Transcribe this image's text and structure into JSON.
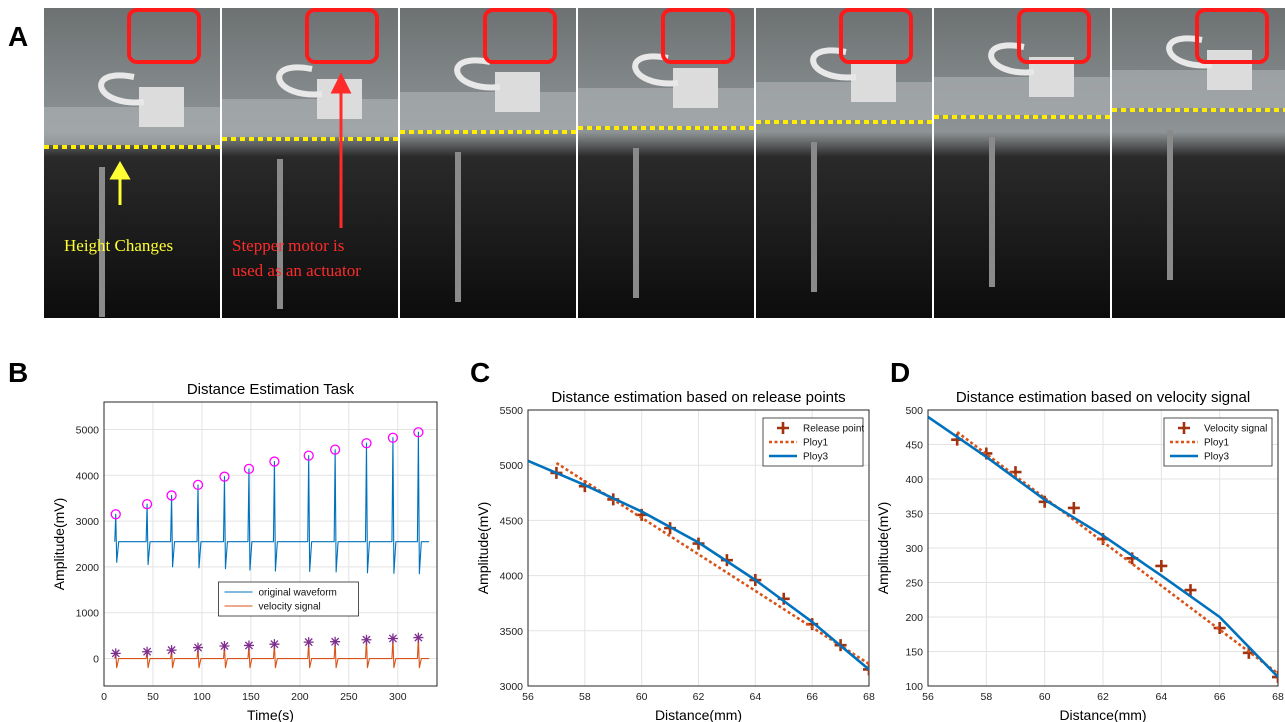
{
  "figure_a": {
    "panel": "A",
    "annotations": [
      {
        "lines": [
          "Height Changes"
        ],
        "color": "#ffff33"
      },
      {
        "lines": [
          "Stepper motor is",
          "used as an actuator"
        ],
        "color": "#ff2a2a"
      }
    ]
  },
  "chart_data": [
    {
      "type": "line",
      "panel": "B",
      "title": "Distance Estimation Task",
      "xlabel": "Time(s)",
      "ylabel": "Amplitude(mV)",
      "xlim": [
        0,
        340
      ],
      "xticks": [
        0,
        50,
        100,
        150,
        200,
        250,
        300
      ],
      "ylim": [
        -600,
        5600
      ],
      "yticks": [
        0,
        1000,
        2000,
        3000,
        4000,
        5000
      ],
      "grid": true,
      "legend": "lower center",
      "series": [
        {
          "name": "original waveform",
          "color": "#0072bd",
          "linestyle": "solid",
          "marker": "none",
          "x": [
            11,
            12,
            13,
            15,
            43,
            44,
            45,
            47,
            68,
            69,
            70,
            72,
            95,
            96,
            97,
            99,
            122,
            123,
            124,
            126,
            147,
            148,
            149,
            151,
            173,
            174,
            175,
            177,
            208,
            209,
            210,
            212,
            235,
            236,
            237,
            239,
            267,
            268,
            269,
            271,
            294,
            295,
            296,
            298,
            320,
            321,
            322,
            324,
            332
          ],
          "values": [
            2550,
            3150,
            2100,
            2550,
            2550,
            3370,
            2050,
            2550,
            2550,
            3560,
            2000,
            2550,
            2550,
            3790,
            1980,
            2550,
            2550,
            3970,
            1960,
            2550,
            2550,
            4140,
            1930,
            2550,
            2550,
            4300,
            1910,
            2550,
            2550,
            4430,
            1900,
            2550,
            2550,
            4560,
            1890,
            2550,
            2550,
            4700,
            1870,
            2550,
            2550,
            4820,
            1860,
            2550,
            2550,
            4940,
            1850,
            2550,
            2550
          ]
        },
        {
          "name": "velocity signal",
          "color": "#d95319",
          "linestyle": "solid",
          "marker": "none",
          "x": [
            11,
            12,
            13,
            15,
            43,
            44,
            45,
            47,
            68,
            69,
            70,
            72,
            95,
            96,
            97,
            99,
            122,
            123,
            124,
            126,
            147,
            148,
            149,
            151,
            173,
            174,
            175,
            177,
            208,
            209,
            210,
            212,
            235,
            236,
            237,
            239,
            267,
            268,
            269,
            271,
            294,
            295,
            296,
            298,
            320,
            321,
            322,
            324,
            332
          ],
          "values": [
            0,
            113,
            -200,
            0,
            0,
            148,
            -200,
            0,
            0,
            184,
            -200,
            0,
            0,
            239,
            -200,
            0,
            0,
            274,
            -200,
            0,
            0,
            285,
            -200,
            0,
            0,
            313,
            -200,
            0,
            0,
            358,
            -200,
            0,
            0,
            367,
            -200,
            0,
            0,
            410,
            -200,
            0,
            0,
            437,
            -200,
            0,
            0,
            457,
            -200,
            0,
            0
          ]
        }
      ],
      "markers": [
        {
          "color": "#ff00ff",
          "marker": "circle",
          "x": [
            12,
            44,
            69,
            96,
            123,
            148,
            174,
            209,
            236,
            268,
            295,
            321
          ],
          "values": [
            3150,
            3370,
            3560,
            3790,
            3970,
            4140,
            4300,
            4430,
            4560,
            4700,
            4820,
            4940
          ]
        },
        {
          "color": "#7e2f8e",
          "marker": "star",
          "x": [
            12,
            44,
            69,
            96,
            123,
            148,
            174,
            209,
            236,
            268,
            295,
            321
          ],
          "values": [
            113,
            148,
            184,
            239,
            274,
            285,
            313,
            358,
            367,
            410,
            437,
            457
          ]
        }
      ]
    },
    {
      "type": "line",
      "panel": "C",
      "title": "Distance estimation based on release points",
      "xlabel": "Distance(mm)",
      "ylabel": "Amplitude(mV)",
      "xlim": [
        56,
        68
      ],
      "xticks": [
        56,
        58,
        60,
        62,
        64,
        66,
        68
      ],
      "ylim": [
        3000,
        5500
      ],
      "yticks": [
        3000,
        3500,
        4000,
        4500,
        5000,
        5500
      ],
      "grid": true,
      "legend": "upper right",
      "series": [
        {
          "name": "Release point",
          "color": "#a2330f",
          "linestyle": "none",
          "marker": "plus",
          "x": [
            57,
            58,
            59,
            60,
            61,
            62,
            63,
            64,
            65,
            66,
            67,
            68
          ],
          "values": [
            4930,
            4810,
            4690,
            4550,
            4430,
            4290,
            4140,
            3960,
            3790,
            3560,
            3370,
            3150
          ]
        },
        {
          "name": "Ploy1",
          "color": "#d95319",
          "linestyle": "dotted",
          "marker": "none",
          "x": [
            57,
            68
          ],
          "values": [
            5020,
            3200
          ]
        },
        {
          "name": "Ploy3",
          "color": "#0072bd",
          "linestyle": "solid",
          "marker": "none",
          "x": [
            56,
            58,
            60,
            62,
            64,
            66,
            68
          ],
          "values": [
            5040,
            4820,
            4580,
            4300,
            3960,
            3580,
            3150
          ]
        }
      ]
    },
    {
      "type": "line",
      "panel": "D",
      "title": "Distance estimation based on velocity signal",
      "xlabel": "Distance(mm)",
      "ylabel": "Amplitude(mV)",
      "xlim": [
        56,
        68
      ],
      "xticks": [
        56,
        58,
        60,
        62,
        64,
        66,
        68
      ],
      "ylim": [
        100,
        500
      ],
      "yticks": [
        100,
        150,
        200,
        250,
        300,
        350,
        400,
        450,
        500
      ],
      "grid": true,
      "legend": "upper right",
      "series": [
        {
          "name": "Velocity signal",
          "color": "#a2330f",
          "linestyle": "none",
          "marker": "plus",
          "x": [
            57,
            58,
            59,
            60,
            61,
            62,
            63,
            64,
            65,
            66,
            67,
            68
          ],
          "values": [
            457,
            437,
            410,
            367,
            358,
            313,
            285,
            274,
            239,
            184,
            148,
            113
          ]
        },
        {
          "name": "Ploy1",
          "color": "#d95319",
          "linestyle": "dotted",
          "marker": "none",
          "x": [
            57,
            68
          ],
          "values": [
            468,
            118
          ]
        },
        {
          "name": "Ploy3",
          "color": "#0072bd",
          "linestyle": "solid",
          "marker": "none",
          "x": [
            56,
            58,
            60,
            62,
            64,
            66,
            68
          ],
          "values": [
            490,
            432,
            370,
            318,
            260,
            200,
            113
          ]
        }
      ]
    }
  ]
}
